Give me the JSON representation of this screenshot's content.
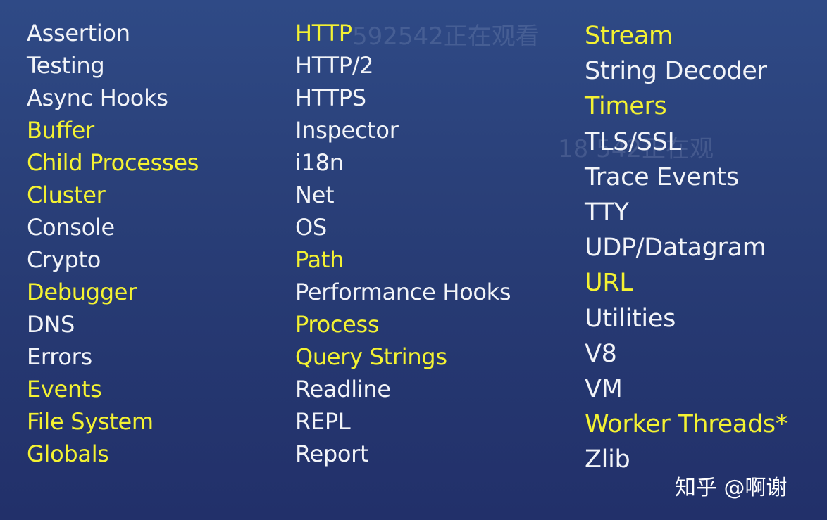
{
  "columns": [
    {
      "items": [
        {
          "label": "Assertion",
          "highlight": false
        },
        {
          "label": "Testing",
          "highlight": false
        },
        {
          "label": "Async Hooks",
          "highlight": false
        },
        {
          "label": "Buffer",
          "highlight": true
        },
        {
          "label": "Child Processes",
          "highlight": true
        },
        {
          "label": "Cluster",
          "highlight": true
        },
        {
          "label": "Console",
          "highlight": false
        },
        {
          "label": "Crypto",
          "highlight": false
        },
        {
          "label": "Debugger",
          "highlight": true
        },
        {
          "label": "DNS",
          "highlight": false
        },
        {
          "label": "Errors",
          "highlight": false
        },
        {
          "label": "Events",
          "highlight": true
        },
        {
          "label": "File System",
          "highlight": true
        },
        {
          "label": "Globals",
          "highlight": true
        }
      ]
    },
    {
      "items": [
        {
          "label": "HTTP",
          "highlight": true
        },
        {
          "label": "HTTP/2",
          "highlight": false
        },
        {
          "label": "HTTPS",
          "highlight": false
        },
        {
          "label": "Inspector",
          "highlight": false
        },
        {
          "label": "i18n",
          "highlight": false
        },
        {
          "label": "Net",
          "highlight": false
        },
        {
          "label": "OS",
          "highlight": false
        },
        {
          "label": "Path",
          "highlight": true
        },
        {
          "label": "Performance Hooks",
          "highlight": false
        },
        {
          "label": "Process",
          "highlight": true
        },
        {
          "label": "Query Strings",
          "highlight": true
        },
        {
          "label": "Readline",
          "highlight": false
        },
        {
          "label": "REPL",
          "highlight": false
        },
        {
          "label": "Report",
          "highlight": false
        }
      ]
    },
    {
      "items": [
        {
          "label": "Stream",
          "highlight": true
        },
        {
          "label": "String Decoder",
          "highlight": false
        },
        {
          "label": "Timers",
          "highlight": true
        },
        {
          "label": "TLS/SSL",
          "highlight": false
        },
        {
          "label": "Trace Events",
          "highlight": false
        },
        {
          "label": "TTY",
          "highlight": false
        },
        {
          "label": "UDP/Datagram",
          "highlight": false
        },
        {
          "label": "URL",
          "highlight": true
        },
        {
          "label": "Utilities",
          "highlight": false
        },
        {
          "label": "V8",
          "highlight": false
        },
        {
          "label": "VM",
          "highlight": false
        },
        {
          "label": "Worker Threads*",
          "highlight": true
        },
        {
          "label": "Zlib",
          "highlight": false
        }
      ]
    }
  ],
  "watermarks": [
    "592542正在观看",
    "18    542正在观"
  ],
  "brand": "知乎 @啊谢",
  "colors": {
    "background": "#2a4079",
    "text": "#f2f4f8",
    "highlight": "#f4f232"
  }
}
